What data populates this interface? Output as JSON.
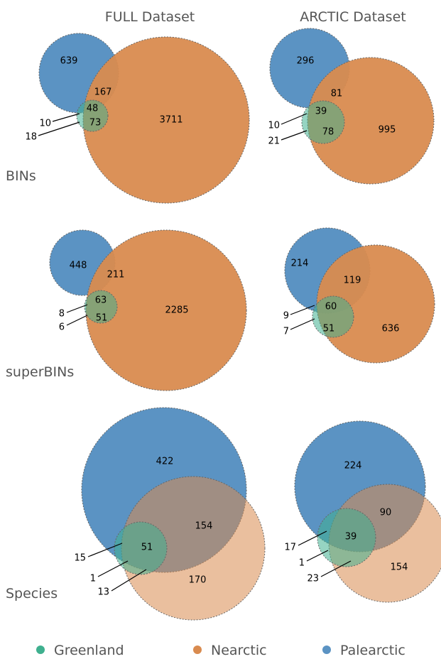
{
  "columns": [
    "FULL Dataset",
    "ARCTIC Dataset"
  ],
  "rows": [
    "BINs",
    "superBINs",
    "Species"
  ],
  "colors": {
    "greenland": "#3fb08f",
    "nearctic": "#d98b4f",
    "palearctic": "#5b93c3"
  },
  "legend": [
    {
      "label": "Greenland",
      "color": "#3fb08f"
    },
    {
      "label": "Nearctic",
      "color": "#d98b4f"
    },
    {
      "label": "Palearctic",
      "color": "#5b93c3"
    }
  ],
  "panels": {
    "full_bins": {
      "palearctic_only": "639",
      "pal_near": "167",
      "all_three": "48",
      "near_green": "73",
      "nearctic_only": "3711",
      "pal_green": "10",
      "greenland_only": "18"
    },
    "arctic_bins": {
      "palearctic_only": "296",
      "pal_near": "81",
      "all_three": "39",
      "near_green": "78",
      "nearctic_only": "995",
      "pal_green": "10",
      "greenland_only": "21"
    },
    "full_superbins": {
      "palearctic_only": "448",
      "pal_near": "211",
      "all_three": "63",
      "near_green": "51",
      "nearctic_only": "2285",
      "pal_green": "8",
      "greenland_only": "6"
    },
    "arctic_superbins": {
      "palearctic_only": "214",
      "pal_near": "119",
      "all_three": "60",
      "near_green": "51",
      "nearctic_only": "636",
      "pal_green": "9",
      "greenland_only": "7"
    },
    "full_species": {
      "palearctic_only": "422",
      "pal_near": "154",
      "all_three": "51",
      "near_green": "13",
      "nearctic_only": "170",
      "pal_green": "15",
      "greenland_only": "1"
    },
    "arctic_species": {
      "palearctic_only": "224",
      "pal_near": "90",
      "all_three": "39",
      "near_green": "23",
      "nearctic_only": "154",
      "pal_green": "17",
      "greenland_only": "1"
    }
  }
}
